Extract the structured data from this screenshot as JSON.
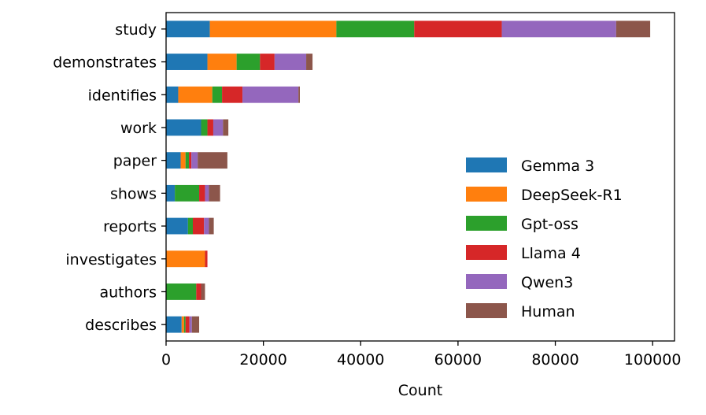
{
  "chart_data": {
    "type": "bar",
    "orientation": "horizontal",
    "stacked": true,
    "xlabel": "Count",
    "ylabel": "",
    "xlim": [
      0,
      104500
    ],
    "xticks": [
      0,
      20000,
      40000,
      60000,
      80000,
      100000
    ],
    "grid": false,
    "legend_position": "lower-right",
    "categories": [
      "study",
      "demonstrates",
      "identifies",
      "work",
      "paper",
      "shows",
      "reports",
      "investigates",
      "authors",
      "describes"
    ],
    "series": [
      {
        "name": "Gemma 3",
        "color": "#1f77b4",
        "values": [
          9000,
          8500,
          2500,
          7200,
          3000,
          1800,
          4500,
          0,
          0,
          3200
        ]
      },
      {
        "name": "DeepSeek-R1",
        "color": "#ff7f0e",
        "values": [
          26000,
          6000,
          7000,
          0,
          1000,
          0,
          0,
          8000,
          0,
          500
        ]
      },
      {
        "name": "Gpt-oss",
        "color": "#2ca02c",
        "values": [
          16000,
          4800,
          2000,
          1300,
          700,
          5000,
          1000,
          0,
          6200,
          300
        ]
      },
      {
        "name": "Llama 4",
        "color": "#d62728",
        "values": [
          18000,
          3000,
          4200,
          1200,
          500,
          1200,
          2300,
          500,
          1000,
          800
        ]
      },
      {
        "name": "Qwen3",
        "color": "#9467bd",
        "values": [
          23500,
          6500,
          11500,
          2000,
          1300,
          800,
          1000,
          0,
          0,
          500
        ]
      },
      {
        "name": "Human",
        "color": "#8c564b",
        "values": [
          7000,
          1300,
          300,
          1100,
          6100,
          2300,
          1000,
          0,
          800,
          1500
        ]
      }
    ]
  }
}
